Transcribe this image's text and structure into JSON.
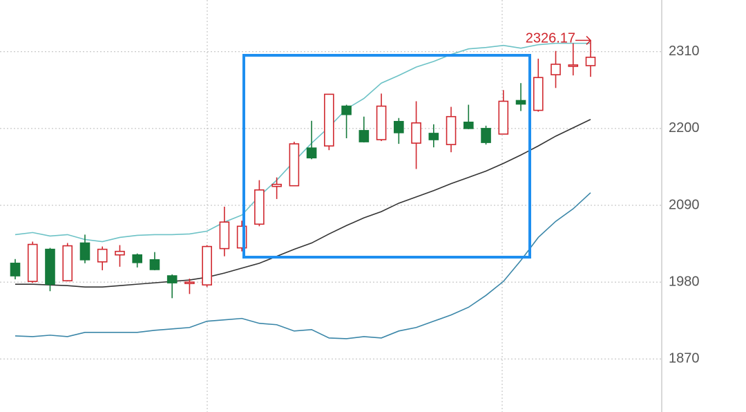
{
  "chart_data": {
    "type": "candlestick",
    "ylim": [
      1794,
      2384
    ],
    "yticks": [
      1870,
      1980,
      2090,
      2200,
      2310
    ],
    "grid": true,
    "up_color": "#d0272e",
    "down_color": "#157a3b",
    "candles": {
      "open": [
        2007,
        1981,
        2027,
        1982,
        2036,
        2009,
        2019,
        2019,
        2012,
        1989,
        1978,
        1976,
        2028,
        2029,
        2063,
        2117,
        2118,
        2172,
        2175,
        2232,
        2197,
        2184,
        2210,
        2179,
        2193,
        2177,
        2209,
        2200,
        2192,
        2240,
        2226,
        2277,
        2289,
        2290
      ],
      "high": [
        2013,
        2038,
        2029,
        2036,
        2048,
        2031,
        2033,
        2021,
        2023,
        1991,
        1985,
        2033,
        2088,
        2068,
        2126,
        2130,
        2181,
        2211,
        2249,
        2234,
        2217,
        2250,
        2215,
        2239,
        2206,
        2231,
        2234,
        2204,
        2255,
        2265,
        2300,
        2311,
        2322,
        2326.17
      ],
      "low": [
        1984,
        1979,
        1967,
        1981,
        2007,
        1997,
        2002,
        2001,
        1997,
        1957,
        1963,
        1973,
        2017,
        2024,
        2060,
        2099,
        2118,
        2156,
        2169,
        2186,
        2180,
        2182,
        2178,
        2142,
        2173,
        2166,
        2199,
        2177,
        2192,
        2225,
        2224,
        2258,
        2276,
        2274
      ],
      "close": [
        1989,
        2034,
        1977,
        2032,
        2012,
        2027,
        2024,
        2008,
        1998,
        1979,
        1980,
        2031,
        2066,
        2060,
        2112,
        2120,
        2178,
        2158,
        2249,
        2220,
        2181,
        2232,
        2194,
        2208,
        2184,
        2217,
        2200,
        2180,
        2239,
        2235,
        2273,
        2292,
        2291,
        2302
      ]
    },
    "lines": [
      {
        "color": "#6cc2c6",
        "values": [
          2048,
          2051,
          2046,
          2048,
          2041,
          2038,
          2044,
          2047,
          2048,
          2048,
          2049,
          2053,
          2066,
          2076,
          2103,
          2126,
          2153,
          2179,
          2202,
          2228,
          2243,
          2265,
          2276,
          2288,
          2296,
          2306,
          2314,
          2316,
          2319,
          2315,
          2320,
          2322,
          2322,
          2322
        ]
      },
      {
        "color": "#333333",
        "values": [
          1977,
          1977,
          1976,
          1975,
          1973,
          1973,
          1975,
          1977,
          1979,
          1981,
          1983,
          1987,
          1993,
          2000,
          2007,
          2017,
          2027,
          2036,
          2049,
          2061,
          2072,
          2081,
          2093,
          2102,
          2111,
          2121,
          2130,
          2139,
          2150,
          2162,
          2175,
          2189,
          2201,
          2213
        ]
      },
      {
        "color": "#3a86a8",
        "values": [
          1903,
          1902,
          1904,
          1902,
          1908,
          1908,
          1908,
          1908,
          1911,
          1913,
          1915,
          1924,
          1926,
          1928,
          1921,
          1919,
          1910,
          1912,
          1900,
          1899,
          1902,
          1900,
          1910,
          1915,
          1924,
          1933,
          1944,
          1961,
          1981,
          2011,
          2044,
          2067,
          2085,
          2108
        ]
      }
    ]
  }
}
